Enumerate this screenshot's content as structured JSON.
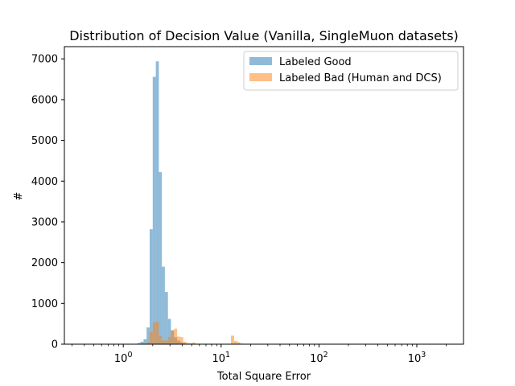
{
  "chart_data": {
    "type": "histogram",
    "title": "Distribution of Decision Value (Vanilla, SingleMuon datasets)",
    "xlabel": "Total Square Error",
    "ylabel": "#",
    "xscale": "log",
    "xlim": [
      0.25,
      3000
    ],
    "ylim": [
      0,
      7300
    ],
    "x_ticks": [
      {
        "value": 1,
        "base": "10",
        "exp": "0"
      },
      {
        "value": 10,
        "base": "10",
        "exp": "1"
      },
      {
        "value": 100,
        "base": "10",
        "exp": "2"
      },
      {
        "value": 1000,
        "base": "10",
        "exp": "3"
      }
    ],
    "y_ticks": [
      0,
      1000,
      2000,
      3000,
      4000,
      5000,
      6000,
      7000
    ],
    "grid": false,
    "legend_position": "top-right",
    "series": [
      {
        "name": "Labeled Good",
        "color": "#1f77b4",
        "alpha": 0.5,
        "bins": [
          [
            1.4,
            1.5,
            30
          ],
          [
            1.5,
            1.61,
            60
          ],
          [
            1.61,
            1.73,
            120
          ],
          [
            1.73,
            1.86,
            410
          ],
          [
            1.86,
            2.0,
            2820
          ],
          [
            2.0,
            2.15,
            6560
          ],
          [
            2.15,
            2.31,
            6940
          ],
          [
            2.31,
            2.48,
            4220
          ],
          [
            2.48,
            2.66,
            1900
          ],
          [
            2.66,
            2.86,
            1280
          ],
          [
            2.86,
            3.07,
            620
          ],
          [
            3.07,
            3.3,
            340
          ],
          [
            3.3,
            3.55,
            170
          ],
          [
            3.55,
            3.81,
            90
          ],
          [
            3.81,
            4.1,
            45
          ],
          [
            4.1,
            4.4,
            20
          ]
        ]
      },
      {
        "name": "Labeled Bad (Human and DCS)",
        "color": "#ff7f0e",
        "alpha": 0.5,
        "bins": [
          [
            1.73,
            1.86,
            50
          ],
          [
            1.86,
            2.0,
            300
          ],
          [
            2.0,
            2.15,
            530
          ],
          [
            2.15,
            2.31,
            560
          ],
          [
            2.31,
            2.48,
            210
          ],
          [
            2.48,
            2.66,
            90
          ],
          [
            2.66,
            2.86,
            90
          ],
          [
            2.86,
            3.07,
            180
          ],
          [
            3.07,
            3.3,
            340
          ],
          [
            3.3,
            3.55,
            380
          ],
          [
            3.55,
            3.81,
            190
          ],
          [
            3.81,
            4.1,
            175
          ],
          [
            4.1,
            4.4,
            60
          ],
          [
            4.4,
            4.73,
            30
          ],
          [
            4.73,
            5.08,
            25
          ],
          [
            5.08,
            5.46,
            40
          ],
          [
            5.46,
            5.86,
            10
          ],
          [
            12.6,
            13.6,
            210
          ],
          [
            13.6,
            14.6,
            80
          ],
          [
            14.6,
            15.7,
            50
          ],
          [
            15.7,
            16.9,
            15
          ]
        ]
      }
    ]
  }
}
